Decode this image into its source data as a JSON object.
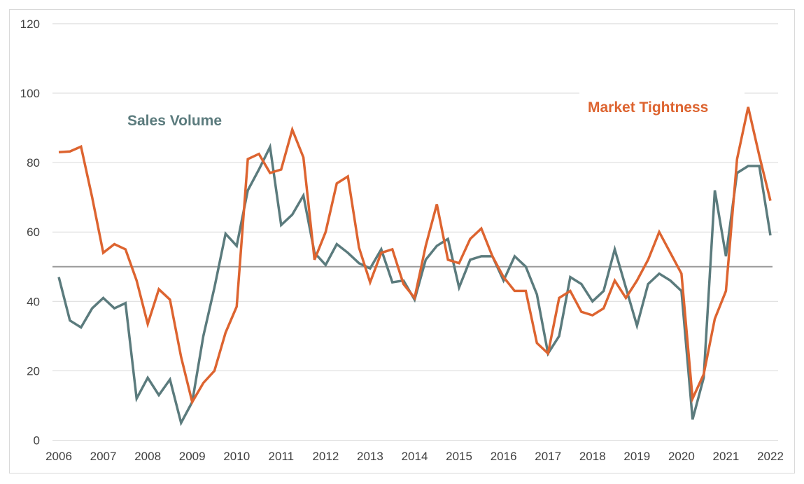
{
  "chart_data": {
    "type": "line",
    "title": "",
    "xlabel": "",
    "ylabel": "",
    "ylim": [
      0,
      120
    ],
    "yticks": [
      0,
      20,
      40,
      60,
      80,
      100,
      120
    ],
    "xticks": [
      "2006",
      "2007",
      "2008",
      "2009",
      "2010",
      "2011",
      "2012",
      "2013",
      "2014",
      "2015",
      "2016",
      "2017",
      "2018",
      "2019",
      "2020",
      "2021",
      "2022"
    ],
    "x_frequency": "quarterly, 2006 to 2022",
    "reference_line": 50,
    "grid": "horizontal",
    "series": [
      {
        "name": "Sales Volume",
        "color": "#5b7b7d",
        "values": [
          47,
          34.5,
          32.5,
          38,
          41,
          38,
          39.5,
          12,
          18,
          13,
          17.5,
          5,
          11,
          30,
          44,
          59.5,
          56,
          72,
          78,
          84.5,
          62,
          65,
          70.5,
          54,
          50.5,
          56.5,
          54,
          51,
          49.5,
          55,
          45.5,
          46,
          40.5,
          52,
          56,
          58,
          44,
          52,
          53,
          53,
          46,
          53,
          50,
          42,
          25,
          30,
          47,
          45,
          40,
          43,
          55,
          44,
          33,
          45,
          48,
          46,
          43,
          6,
          18,
          72,
          53,
          77,
          79,
          79,
          59
        ]
      },
      {
        "name": "Market Tightness",
        "color": "#dd6430",
        "values": [
          83,
          83.2,
          84.6,
          70,
          54,
          56.5,
          55,
          46,
          33.5,
          43.5,
          40.5,
          24,
          11,
          16.5,
          20,
          31,
          38.5,
          81,
          82.5,
          77,
          78,
          89.5,
          81.5,
          52,
          60,
          74,
          76,
          55.5,
          45.5,
          54,
          55,
          45,
          41,
          56,
          68,
          52,
          51,
          58,
          61,
          53,
          47,
          43,
          43,
          28,
          25,
          41,
          43,
          37,
          36,
          38,
          46,
          41,
          46,
          52,
          60,
          54,
          48,
          12,
          19,
          35,
          43,
          81,
          96,
          82,
          69
        ]
      }
    ]
  }
}
